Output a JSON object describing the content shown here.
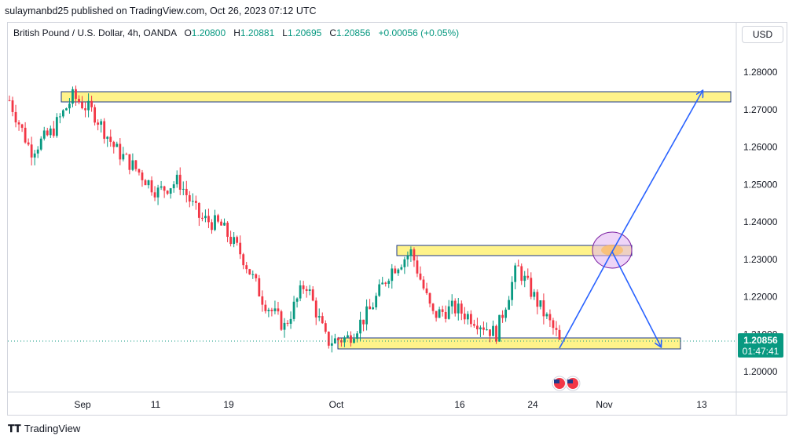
{
  "header": {
    "published": "sulaymanbd25 published on TradingView.com, Oct 26, 2023 07:12 UTC"
  },
  "legend": {
    "symbol": "British Pound / U.S. Dollar, 4h, OANDA",
    "o_label": "O",
    "o": "1.20800",
    "h_label": "H",
    "h": "1.20881",
    "l_label": "L",
    "l": "1.20695",
    "c_label": "C",
    "c": "1.20856",
    "change": "+0.00056 (+0.05%)"
  },
  "currency_button": "USD",
  "price_axis": {
    "labels": [
      "1.28000",
      "1.27000",
      "1.26000",
      "1.25000",
      "1.24000",
      "1.23000",
      "1.22000",
      "1.21000",
      "1.20000"
    ]
  },
  "time_axis": {
    "labels": [
      "Sep",
      "11",
      "19",
      "Oct",
      "16",
      "24",
      "Nov",
      "13"
    ]
  },
  "last_price": {
    "price": "1.20856",
    "countdown": "01:47:41"
  },
  "footer": {
    "brand": "TradingView"
  },
  "colors": {
    "up": "#089981",
    "down": "#f23645",
    "zone_fill": "#fff176",
    "zone_border": "#1e3a8a",
    "arrow": "#2962ff",
    "circle": "#d5b8f0"
  },
  "chart_data": {
    "type": "candlestick",
    "symbol": "GBPUSD",
    "timeframe": "4h",
    "ylim": [
      1.1975,
      1.2875
    ],
    "approx_close_path": [
      [
        "Aug 24",
        1.2725
      ],
      [
        "Aug 26",
        1.259
      ],
      [
        "Aug 29",
        1.264
      ],
      [
        "Aug 31",
        1.2735
      ],
      [
        "Sep 2",
        1.269
      ],
      [
        "Sep 5",
        1.2595
      ],
      [
        "Sep 7",
        1.254
      ],
      [
        "Sep 10",
        1.248
      ],
      [
        "Sep 13",
        1.251
      ],
      [
        "Sep 15",
        1.241
      ],
      [
        "Sep 18",
        1.239
      ],
      [
        "Sep 21",
        1.231
      ],
      [
        "Sep 25",
        1.219
      ],
      [
        "Sep 27",
        1.212
      ],
      [
        "Sep 29",
        1.224
      ],
      [
        "Oct 2",
        1.208
      ],
      [
        "Oct 4",
        1.209
      ],
      [
        "Oct 7",
        1.216
      ],
      [
        "Oct 11",
        1.227
      ],
      [
        "Oct 14",
        1.232
      ],
      [
        "Oct 16",
        1.215
      ],
      [
        "Oct 18",
        1.217
      ],
      [
        "Oct 20",
        1.214
      ],
      [
        "Oct 22",
        1.21
      ],
      [
        "Oct 24",
        1.228
      ],
      [
        "Oct 25",
        1.218
      ],
      [
        "Oct 26",
        1.2086
      ]
    ],
    "zones": [
      {
        "from": 1.272,
        "to": 1.275
      },
      {
        "from": 1.2305,
        "to": 1.2335
      },
      {
        "from": 1.206,
        "to": 1.2092
      }
    ],
    "projection_path": [
      1.2086,
      1.232,
      1.2085,
      1.232,
      1.275
    ]
  }
}
